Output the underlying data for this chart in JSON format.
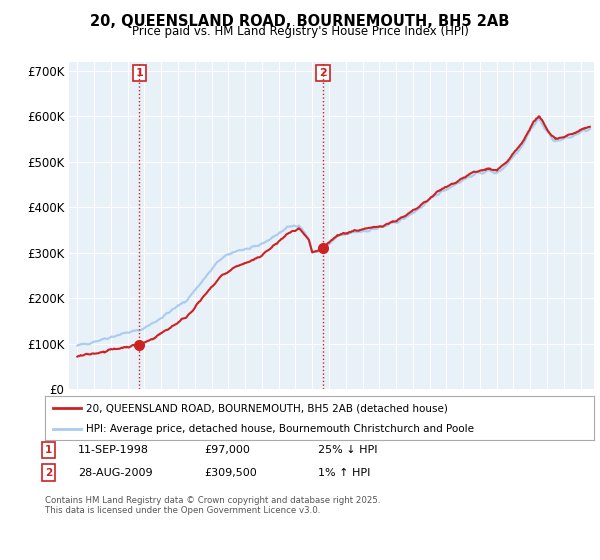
{
  "title_line1": "20, QUEENSLAND ROAD, BOURNEMOUTH, BH5 2AB",
  "title_line2": "Price paid vs. HM Land Registry's House Price Index (HPI)",
  "ylim": [
    0,
    720000
  ],
  "yticks": [
    0,
    100000,
    200000,
    300000,
    400000,
    500000,
    600000,
    700000
  ],
  "ytick_labels": [
    "£0",
    "£100K",
    "£200K",
    "£300K",
    "£400K",
    "£500K",
    "£600K",
    "£700K"
  ],
  "bg_color": "#ffffff",
  "plot_bg_color": "#e8f0f8",
  "grid_color": "#ffffff",
  "sale1_date": 1998.7,
  "sale1_price": 97000,
  "sale2_date": 2009.65,
  "sale2_price": 309500,
  "vline_color": "#cc2222",
  "hpi_color": "#aaccee",
  "price_paid_color": "#cc2222",
  "legend_label_price": "20, QUEENSLAND ROAD, BOURNEMOUTH, BH5 2AB (detached house)",
  "legend_label_hpi": "HPI: Average price, detached house, Bournemouth Christchurch and Poole",
  "footnote": "Contains HM Land Registry data © Crown copyright and database right 2025.\nThis data is licensed under the Open Government Licence v3.0.",
  "xlim_start": 1994.5,
  "xlim_end": 2025.8
}
